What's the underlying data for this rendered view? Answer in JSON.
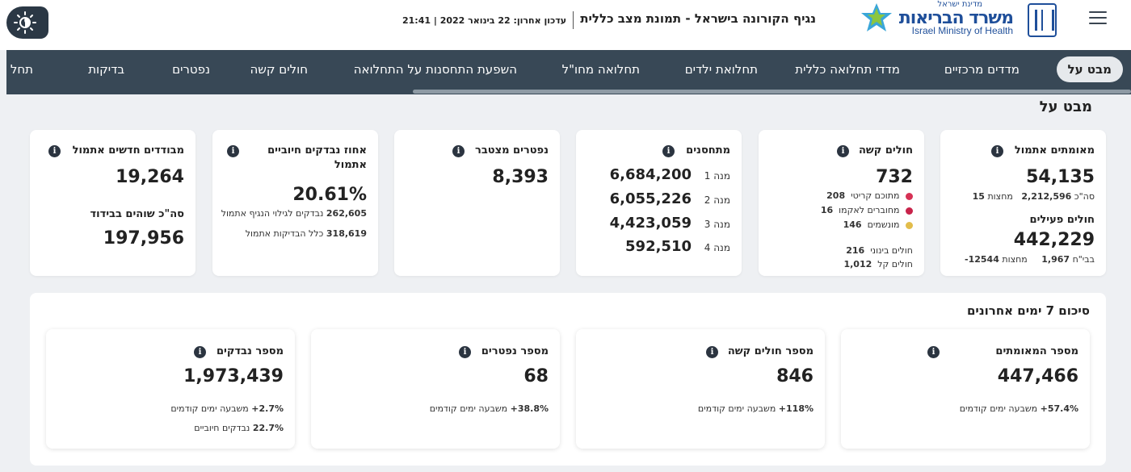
{
  "header": {
    "moh_small": "מדינת ישראל",
    "moh_he": "משרד הבריאות",
    "moh_en": "Israel Ministry of Health",
    "title": "נגיף הקורונה בישראל - תמונת מצב כללית",
    "update": "עדכון אחרון: 22 בינואר 2022 | 21:41"
  },
  "nav": {
    "items": [
      "מבט על",
      "מדדים מרכזיים",
      "מדדי תחלואה כללית",
      "תחלואת ילדים",
      "תחלואה מחו\"ל",
      "השפעת התחסנות על התחלואה",
      "חולים קשה",
      "נפטרים",
      "בדיקות",
      "תחל"
    ]
  },
  "section_title": "מבט על",
  "cards": {
    "verified": {
      "title": "מאומתים אתמול",
      "value": "54,135",
      "total_label": "סה\"כ",
      "total_value": "2,212,596",
      "mid_label": "מחצות",
      "mid_value": "15",
      "active_title": "חולים פעילים",
      "active_value": "442,229",
      "hosp_label": "בבי\"ח",
      "hosp_value": "1,967",
      "mid2_label": "מחצות",
      "mid2_value": "-12544"
    },
    "severe": {
      "title": "חולים קשה",
      "value": "732",
      "critical_label": "מתוכם קריטי",
      "critical_value": "208",
      "ecmo_label": "מחוברים לאקמו",
      "ecmo_value": "16",
      "vent_label": "מונשמים",
      "vent_value": "146",
      "moderate_label": "חולים בינוני",
      "moderate_value": "216",
      "mild_label": "חולים קל",
      "mild_value": "1,012"
    },
    "vaccinated": {
      "title": "מתחסנים",
      "doses": [
        {
          "label": "מנה 1",
          "value": "6,684,200"
        },
        {
          "label": "מנה 2",
          "value": "6,055,226"
        },
        {
          "label": "מנה 3",
          "value": "4,423,059"
        },
        {
          "label": "מנה 4",
          "value": "592,510"
        }
      ]
    },
    "deaths": {
      "title": "נפטרים מצטבר",
      "value": "8,393"
    },
    "positive_pct": {
      "title_line1": "אחוז נבדקים חיוביים",
      "title_line2": "אתמול",
      "value": "20.61%",
      "tested_value": "262,605",
      "tested_label": "נבדקים לגילוי הנגיף אתמול",
      "tests_value": "318,619",
      "tests_label": "כלל הבדיקות אתמול"
    },
    "isolation": {
      "title": "מבודדים חדשים אתמול",
      "value": "19,264",
      "total_title": "סה\"כ שוהים בבידוד",
      "total_value": "197,956"
    }
  },
  "summary": {
    "title": "סיכום 7 ימים אחרונים",
    "cards": [
      {
        "title": "מספר המאומתים",
        "value": "447,466",
        "change": "+57.4%",
        "change_label": "משבעה ימים קודמים"
      },
      {
        "title": "מספר חולים קשה",
        "value": "846",
        "change": "+118%",
        "change_label": "משבעה ימים קודמים"
      },
      {
        "title": "מספר נפטרים",
        "value": "68",
        "change": "+38.8%",
        "change_label": "משבעה ימים קודמים"
      },
      {
        "title": "מספר נבדקים",
        "value": "1,973,439",
        "change": "+2.7%",
        "change_label": "משבעה ימים קודמים",
        "pos": "22.7%",
        "pos_label": "נבדקים חיוביים"
      }
    ]
  },
  "colors": {
    "nav_bg": "#384856",
    "brand_blue": "#1f4f9a",
    "critical_dot": "#d63155",
    "ecmo_dot": "#c8234a",
    "vent_dot": "#e2bd4b"
  },
  "icons": {
    "menu": "hamburger-icon",
    "theme": "sun-icon",
    "info": "info-icon"
  }
}
